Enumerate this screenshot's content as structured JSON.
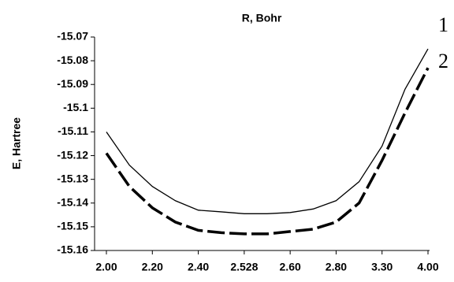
{
  "chart_data": {
    "type": "line",
    "title": "R, Bohr",
    "y_label": "E, Hartree",
    "categories": [
      "2.00",
      null,
      "2.20",
      null,
      "2.40",
      null,
      "2.528",
      null,
      "2.60",
      null,
      "2.80",
      null,
      "3.30",
      null,
      "4.00"
    ],
    "series": [
      {
        "name": "1",
        "color": "#000000",
        "dash": "solid",
        "values": [
          -15.11,
          -15.124,
          -15.133,
          -15.139,
          -15.143,
          -15.1437,
          -15.1445,
          -15.1445,
          -15.144,
          -15.1425,
          -15.139,
          -15.131,
          -15.116,
          -15.092,
          -15.075
        ]
      },
      {
        "name": "2",
        "color": "#000000",
        "dash": "dashed",
        "values": [
          -15.119,
          -15.133,
          -15.142,
          -15.148,
          -15.1515,
          -15.1525,
          -15.153,
          -15.153,
          -15.152,
          -15.151,
          -15.148,
          -15.14,
          -15.122,
          -15.102,
          -15.083
        ]
      }
    ],
    "ylim": [
      -15.16,
      -15.07
    ],
    "yticks": [
      -15.16,
      -15.15,
      -15.14,
      -15.13,
      -15.12,
      -15.11,
      -15.1,
      -15.09,
      -15.08,
      -15.07
    ],
    "grid": false,
    "legend": "right"
  }
}
